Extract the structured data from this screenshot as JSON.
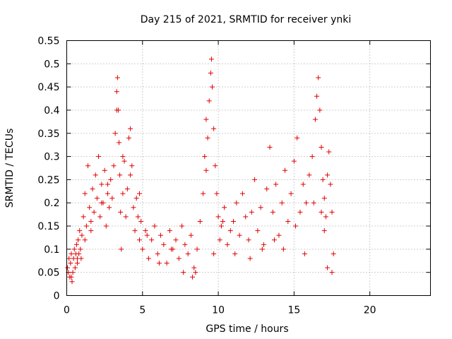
{
  "chart_data": {
    "type": "scatter",
    "title": "Day 215 of 2021, SRMTID for receiver ynki",
    "xlabel": "GPS time / hours",
    "ylabel": "SRMTID / TECUs",
    "xlim": [
      0,
      24
    ],
    "ylim": [
      0,
      0.55
    ],
    "xticks": [
      0,
      5,
      10,
      15,
      20
    ],
    "yticks": [
      0,
      0.05,
      0.1,
      0.15,
      0.2,
      0.25,
      0.3,
      0.35,
      0.4,
      0.45,
      0.5,
      0.55
    ],
    "xtick_labels": [
      "0",
      "5",
      "10",
      "15",
      "20"
    ],
    "ytick_labels": [
      "0",
      "0.05",
      "0.1",
      "0.15",
      "0.2",
      "0.25",
      "0.3",
      "0.35",
      "0.4",
      "0.45",
      "0.5",
      "0.55"
    ],
    "grid": true,
    "marker": "+",
    "marker_color": "#e00000",
    "series": [
      {
        "name": "SRMTID",
        "x": [
          0.05,
          0.1,
          0.15,
          0.2,
          0.25,
          0.3,
          0.35,
          0.4,
          0.45,
          0.5,
          0.55,
          0.6,
          0.65,
          0.7,
          0.75,
          0.8,
          0.85,
          0.9,
          0.95,
          1.0,
          1.1,
          1.2,
          1.3,
          1.4,
          1.5,
          1.6,
          1.7,
          1.8,
          1.9,
          2.0,
          2.1,
          2.2,
          2.3,
          2.4,
          2.5,
          2.6,
          2.7,
          2.8,
          2.9,
          3.0,
          3.1,
          3.2,
          3.3,
          3.35,
          3.4,
          3.45,
          3.5,
          3.55,
          3.6,
          3.7,
          3.8,
          3.9,
          4.0,
          4.1,
          4.2,
          4.3,
          4.4,
          4.5,
          4.6,
          4.7,
          4.8,
          4.9,
          5.0,
          5.2,
          5.4,
          5.6,
          5.8,
          6.0,
          6.2,
          6.4,
          6.6,
          6.8,
          7.0,
          7.2,
          7.4,
          7.6,
          7.8,
          8.0,
          8.2,
          8.4,
          8.5,
          8.6,
          8.8,
          9.0,
          9.1,
          9.2,
          9.3,
          9.4,
          9.5,
          9.55,
          9.6,
          9.7,
          9.8,
          9.9,
          10.0,
          10.1,
          10.2,
          10.4,
          10.6,
          10.8,
          11.0,
          11.2,
          11.4,
          11.6,
          11.8,
          12.0,
          12.2,
          12.4,
          12.6,
          12.8,
          13.0,
          13.2,
          13.4,
          13.6,
          13.8,
          14.0,
          14.2,
          14.4,
          14.6,
          14.8,
          15.0,
          15.2,
          15.4,
          15.6,
          15.8,
          16.0,
          16.2,
          16.4,
          16.5,
          16.6,
          16.7,
          16.8,
          16.9,
          17.0,
          17.1,
          17.2,
          17.3,
          17.4,
          17.5,
          17.6,
          0.3,
          0.7,
          1.2,
          1.6,
          2.3,
          2.7,
          3.3,
          3.7,
          4.2,
          4.8,
          5.3,
          6.1,
          6.9,
          7.7,
          8.3,
          9.2,
          9.7,
          10.3,
          11.1,
          12.1,
          12.9,
          13.7,
          14.3,
          15.1,
          15.7,
          16.3,
          16.8,
          17.2,
          17.5,
          17.0
        ],
        "y": [
          0.06,
          0.05,
          0.08,
          0.04,
          0.07,
          0.09,
          0.03,
          0.05,
          0.08,
          0.1,
          0.06,
          0.09,
          0.11,
          0.07,
          0.12,
          0.09,
          0.14,
          0.1,
          0.08,
          0.13,
          0.17,
          0.22,
          0.15,
          0.28,
          0.19,
          0.14,
          0.23,
          0.18,
          0.26,
          0.21,
          0.3,
          0.17,
          0.24,
          0.2,
          0.27,
          0.15,
          0.22,
          0.19,
          0.25,
          0.21,
          0.28,
          0.35,
          0.44,
          0.47,
          0.4,
          0.33,
          0.26,
          0.18,
          0.1,
          0.22,
          0.29,
          0.17,
          0.23,
          0.34,
          0.36,
          0.28,
          0.19,
          0.14,
          0.21,
          0.17,
          0.12,
          0.16,
          0.1,
          0.14,
          0.08,
          0.12,
          0.15,
          0.09,
          0.13,
          0.11,
          0.07,
          0.14,
          0.1,
          0.12,
          0.08,
          0.15,
          0.11,
          0.09,
          0.13,
          0.06,
          0.05,
          0.1,
          0.16,
          0.22,
          0.3,
          0.38,
          0.34,
          0.42,
          0.48,
          0.51,
          0.45,
          0.36,
          0.28,
          0.22,
          0.17,
          0.12,
          0.15,
          0.19,
          0.11,
          0.14,
          0.16,
          0.2,
          0.13,
          0.22,
          0.17,
          0.12,
          0.18,
          0.25,
          0.14,
          0.19,
          0.11,
          0.23,
          0.32,
          0.18,
          0.24,
          0.13,
          0.2,
          0.27,
          0.16,
          0.22,
          0.29,
          0.34,
          0.18,
          0.24,
          0.2,
          0.26,
          0.3,
          0.38,
          0.43,
          0.47,
          0.4,
          0.32,
          0.25,
          0.21,
          0.17,
          0.26,
          0.31,
          0.24,
          0.18,
          0.09,
          0.04,
          0.08,
          0.12,
          0.16,
          0.2,
          0.24,
          0.4,
          0.3,
          0.26,
          0.22,
          0.13,
          0.07,
          0.1,
          0.05,
          0.04,
          0.27,
          0.09,
          0.16,
          0.09,
          0.08,
          0.1,
          0.12,
          0.1,
          0.15,
          0.09,
          0.2,
          0.18,
          0.06,
          0.05,
          0.14
        ]
      }
    ]
  }
}
